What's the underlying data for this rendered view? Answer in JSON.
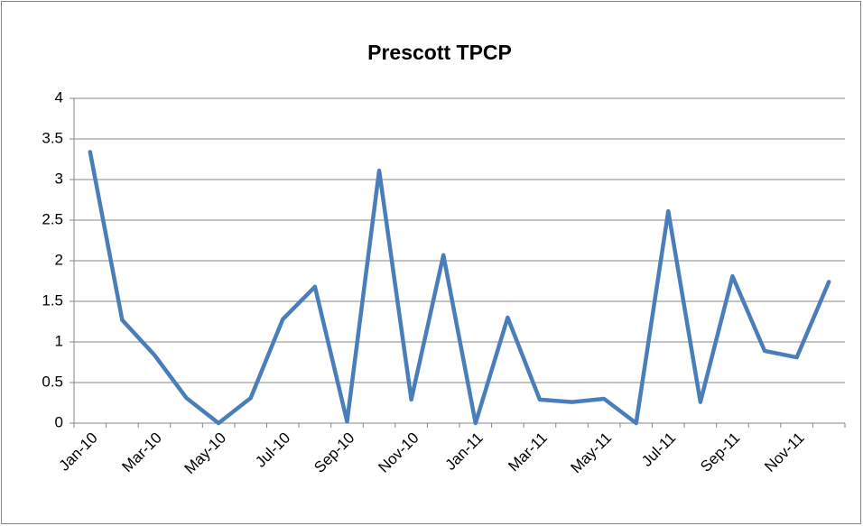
{
  "chart_data": {
    "type": "line",
    "title": "Prescott TPCP",
    "categories": [
      "Jan-10",
      null,
      "Mar-10",
      null,
      "May-10",
      null,
      "Jul-10",
      null,
      "Sep-10",
      null,
      "Nov-10",
      null,
      "Jan-11",
      null,
      "Mar-11",
      null,
      "May-11",
      null,
      "Jul-11",
      null,
      "Sep-11",
      null,
      "Nov-11",
      null
    ],
    "series": [
      {
        "name": "TPCP",
        "color": "#4a7ebb",
        "values": [
          3.34,
          1.27,
          0.84,
          0.31,
          0,
          0.31,
          1.28,
          1.68,
          0.02,
          3.11,
          0.29,
          2.07,
          0,
          1.3,
          0.29,
          0.26,
          0.3,
          0,
          2.61,
          0.26,
          1.81,
          0.89,
          0.81,
          1.74
        ]
      }
    ],
    "ylim": [
      0,
      4
    ],
    "yticks": [
      0,
      0.5,
      1,
      1.5,
      2,
      2.5,
      3,
      3.5,
      4
    ],
    "grid": true,
    "legend": false
  }
}
